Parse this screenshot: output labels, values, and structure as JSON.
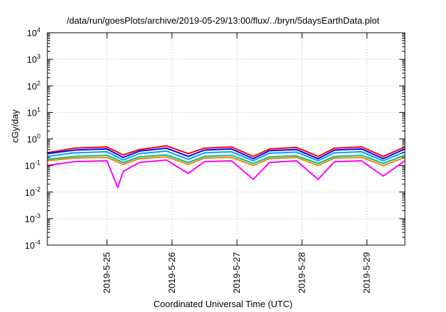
{
  "chart_data": {
    "type": "line",
    "title": "/data/run/goesPlots/archive/2019-05-29/13:00/flux/../bryn/5daysEarthData.plot",
    "xlabel": "Coordinated Universal Time (UTC)",
    "ylabel": "cGy/day",
    "yscale": "log",
    "ylim_exponents": [
      -4,
      4
    ],
    "y_tick_labels": [
      {
        "base": "10",
        "exp": "4"
      },
      {
        "base": "10",
        "exp": "3"
      },
      {
        "base": "10",
        "exp": "2"
      },
      {
        "base": "10",
        "exp": "1"
      },
      {
        "base": "10",
        "exp": "0"
      },
      {
        "base": "10",
        "exp": "-1"
      },
      {
        "base": "10",
        "exp": "-2"
      },
      {
        "base": "10",
        "exp": "-3"
      },
      {
        "base": "10",
        "exp": "-4"
      }
    ],
    "xlim": [
      "2019-05-24T02:00",
      "2019-05-29T14:00"
    ],
    "x_ticks": [
      "2019-5-25",
      "2019-5-26",
      "2019-5-27",
      "2019-5-28",
      "2019-5-29"
    ],
    "grid": true,
    "series": [
      {
        "color": "#ff0000",
        "x": [
          "2019-05-24T02:00",
          "2019-05-24T12:00",
          "2019-05-25T00:00",
          "2019-05-25T06:00",
          "2019-05-25T12:00",
          "2019-05-25T22:00",
          "2019-05-26T06:00",
          "2019-05-26T12:00",
          "2019-05-26T22:00",
          "2019-05-27T06:00",
          "2019-05-27T12:00",
          "2019-05-27T22:00",
          "2019-05-28T06:00",
          "2019-05-28T12:00",
          "2019-05-28T22:00",
          "2019-05-29T06:00",
          "2019-05-29T14:00"
        ],
        "values": [
          0.3,
          0.45,
          0.5,
          0.25,
          0.4,
          0.55,
          0.28,
          0.45,
          0.5,
          0.22,
          0.42,
          0.48,
          0.22,
          0.45,
          0.5,
          0.22,
          0.5
        ]
      },
      {
        "color": "#0000ff",
        "x": [
          "2019-05-24T02:00",
          "2019-05-24T12:00",
          "2019-05-25T00:00",
          "2019-05-25T06:00",
          "2019-05-25T12:00",
          "2019-05-25T22:00",
          "2019-05-26T06:00",
          "2019-05-26T12:00",
          "2019-05-26T22:00",
          "2019-05-27T06:00",
          "2019-05-27T12:00",
          "2019-05-27T22:00",
          "2019-05-28T06:00",
          "2019-05-28T12:00",
          "2019-05-28T22:00",
          "2019-05-29T06:00",
          "2019-05-29T14:00"
        ],
        "values": [
          0.28,
          0.38,
          0.42,
          0.2,
          0.35,
          0.45,
          0.22,
          0.38,
          0.42,
          0.18,
          0.36,
          0.4,
          0.18,
          0.38,
          0.42,
          0.18,
          0.42
        ]
      },
      {
        "color": "#00a0ff",
        "x": [
          "2019-05-24T02:00",
          "2019-05-24T12:00",
          "2019-05-25T00:00",
          "2019-05-25T06:00",
          "2019-05-25T12:00",
          "2019-05-25T22:00",
          "2019-05-26T06:00",
          "2019-05-26T12:00",
          "2019-05-26T22:00",
          "2019-05-27T06:00",
          "2019-05-27T12:00",
          "2019-05-27T22:00",
          "2019-05-28T06:00",
          "2019-05-28T12:00",
          "2019-05-28T22:00",
          "2019-05-29T06:00",
          "2019-05-29T14:00"
        ],
        "values": [
          0.22,
          0.3,
          0.33,
          0.16,
          0.28,
          0.35,
          0.17,
          0.3,
          0.33,
          0.15,
          0.29,
          0.32,
          0.15,
          0.3,
          0.33,
          0.15,
          0.33
        ]
      },
      {
        "color": "#00c080",
        "x": [
          "2019-05-24T02:00",
          "2019-05-24T12:00",
          "2019-05-25T00:00",
          "2019-05-25T06:00",
          "2019-05-25T12:00",
          "2019-05-25T22:00",
          "2019-05-26T06:00",
          "2019-05-26T12:00",
          "2019-05-26T22:00",
          "2019-05-27T06:00",
          "2019-05-27T12:00",
          "2019-05-27T22:00",
          "2019-05-28T06:00",
          "2019-05-28T12:00",
          "2019-05-28T22:00",
          "2019-05-29T06:00",
          "2019-05-29T14:00"
        ],
        "values": [
          0.17,
          0.22,
          0.24,
          0.13,
          0.21,
          0.25,
          0.13,
          0.22,
          0.24,
          0.12,
          0.21,
          0.23,
          0.12,
          0.22,
          0.24,
          0.12,
          0.24
        ]
      },
      {
        "color": "#ff8000",
        "x": [
          "2019-05-24T02:00",
          "2019-05-24T12:00",
          "2019-05-25T00:00",
          "2019-05-25T06:00",
          "2019-05-25T12:00",
          "2019-05-25T22:00",
          "2019-05-26T06:00",
          "2019-05-26T12:00",
          "2019-05-26T22:00",
          "2019-05-27T06:00",
          "2019-05-27T12:00",
          "2019-05-27T22:00",
          "2019-05-28T06:00",
          "2019-05-28T12:00",
          "2019-05-28T22:00",
          "2019-05-29T06:00",
          "2019-05-29T14:00"
        ],
        "values": [
          0.15,
          0.19,
          0.2,
          0.11,
          0.18,
          0.21,
          0.11,
          0.19,
          0.2,
          0.1,
          0.18,
          0.2,
          0.1,
          0.19,
          0.2,
          0.1,
          0.2
        ]
      },
      {
        "color": "#ff00ff",
        "x": [
          "2019-05-24T02:00",
          "2019-05-24T12:00",
          "2019-05-25T00:00",
          "2019-05-25T04:00",
          "2019-05-25T06:00",
          "2019-05-25T12:00",
          "2019-05-25T22:00",
          "2019-05-26T06:00",
          "2019-05-26T12:00",
          "2019-05-26T22:00",
          "2019-05-27T06:00",
          "2019-05-27T12:00",
          "2019-05-27T22:00",
          "2019-05-28T06:00",
          "2019-05-28T12:00",
          "2019-05-28T22:00",
          "2019-05-29T06:00",
          "2019-05-29T14:00"
        ],
        "values": [
          0.1,
          0.14,
          0.15,
          0.015,
          0.06,
          0.13,
          0.16,
          0.05,
          0.14,
          0.15,
          0.03,
          0.13,
          0.15,
          0.03,
          0.14,
          0.15,
          0.04,
          0.15
        ]
      }
    ]
  }
}
